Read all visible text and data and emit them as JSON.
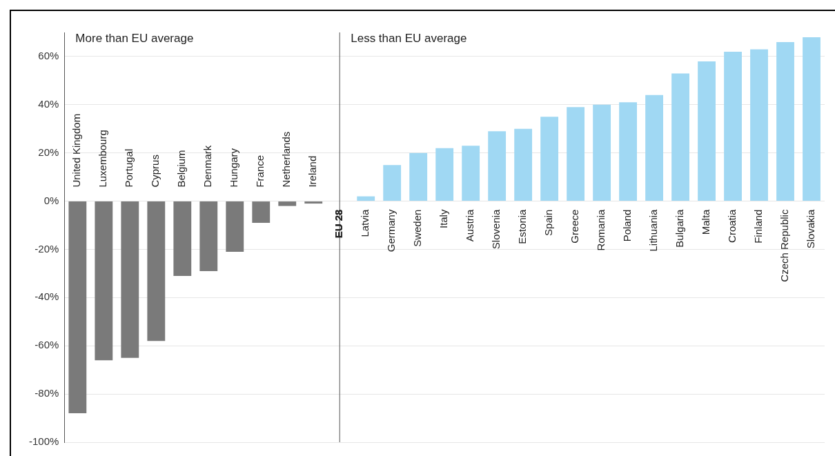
{
  "chart_data": {
    "type": "bar",
    "categories": [
      "United Kingdom",
      "Luxembourg",
      "Portugal",
      "Cyprus",
      "Belgium",
      "Denmark",
      "Hungary",
      "France",
      "Netherlands",
      "Ireland",
      "EU 28",
      "Latvia",
      "Germany",
      "Sweden",
      "Italy",
      "Austria",
      "Slovenia",
      "Estonia",
      "Spain",
      "Greece",
      "Romania",
      "Poland",
      "Lithuania",
      "Bulgaria",
      "Malta",
      "Croatia",
      "Finland",
      "Czech Republic",
      "Slovakia"
    ],
    "values": [
      -88,
      -66,
      -65,
      -58,
      -31,
      -29,
      -21,
      -9,
      -2,
      -1,
      0,
      2,
      15,
      20,
      22,
      23,
      29,
      30,
      35,
      39,
      40,
      41,
      44,
      53,
      58,
      62,
      63,
      66,
      68
    ],
    "colors": [
      "#7a7a7a",
      "#7a7a7a",
      "#7a7a7a",
      "#7a7a7a",
      "#7a7a7a",
      "#7a7a7a",
      "#7a7a7a",
      "#7a7a7a",
      "#7a7a7a",
      "#7a7a7a",
      "#a0d8f3",
      "#a0d8f3",
      "#a0d8f3",
      "#a0d8f3",
      "#a0d8f3",
      "#a0d8f3",
      "#a0d8f3",
      "#a0d8f3",
      "#a0d8f3",
      "#a0d8f3",
      "#a0d8f3",
      "#a0d8f3",
      "#a0d8f3",
      "#a0d8f3",
      "#a0d8f3",
      "#a0d8f3",
      "#a0d8f3",
      "#a0d8f3",
      "#a0d8f3"
    ],
    "ylim": [
      -100,
      70
    ],
    "yticks": [
      {
        "value": -100,
        "label": "-100%"
      },
      {
        "value": -80,
        "label": "-80%"
      },
      {
        "value": -60,
        "label": "-60%"
      },
      {
        "value": -40,
        "label": "-40%"
      },
      {
        "value": -20,
        "label": "-20%"
      },
      {
        "value": 0,
        "label": "0%"
      },
      {
        "value": 20,
        "label": "20%"
      },
      {
        "value": 40,
        "label": "40%"
      },
      {
        "value": 60,
        "label": "60%"
      }
    ],
    "grid": "y",
    "legend": false,
    "ref_lines": [
      {
        "axis": "x",
        "value": "EU 28",
        "color": "#555555"
      }
    ],
    "annotations": [
      "More than EU average",
      "Less than EU average"
    ]
  }
}
